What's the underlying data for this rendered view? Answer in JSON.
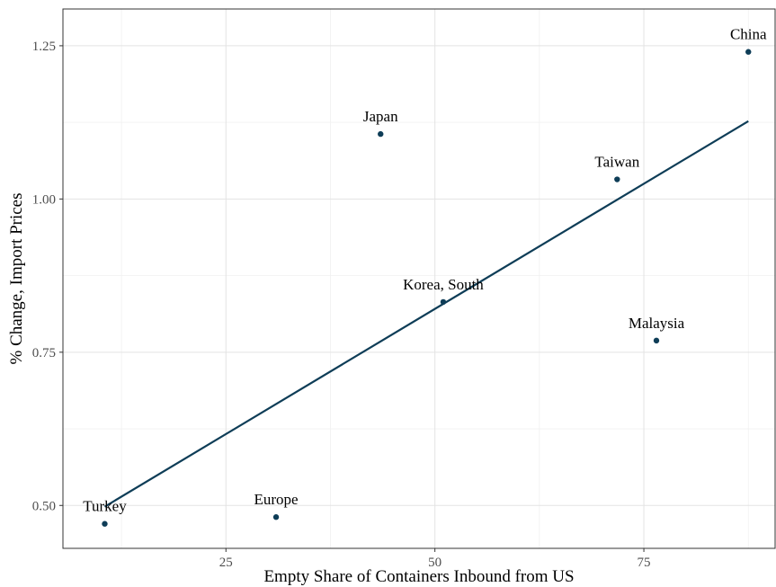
{
  "chart_data": {
    "type": "scatter",
    "title": "",
    "xlabel": "Empty Share of Containers Inbound from US",
    "ylabel": "% Change, Import Prices",
    "xlim": [
      5.5,
      90.7
    ],
    "ylim": [
      0.43,
      1.31
    ],
    "x_ticks": [
      25,
      50,
      75
    ],
    "x_tick_labels": [
      "25",
      "50",
      "75"
    ],
    "y_ticks": [
      0.5,
      0.75,
      1.0,
      1.25
    ],
    "y_tick_labels": [
      "0.50",
      "0.75",
      "1.00",
      "1.25"
    ],
    "grid": true,
    "legend": "none",
    "points": [
      {
        "label": "China",
        "x": 87.5,
        "y": 1.24
      },
      {
        "label": "Japan",
        "x": 43.5,
        "y": 1.106
      },
      {
        "label": "Taiwan",
        "x": 71.8,
        "y": 1.032
      },
      {
        "label": "Korea, South",
        "x": 51.0,
        "y": 0.832
      },
      {
        "label": "Malaysia",
        "x": 76.5,
        "y": 0.769
      },
      {
        "label": "Europe",
        "x": 31.0,
        "y": 0.481
      },
      {
        "label": "Turkey",
        "x": 10.5,
        "y": 0.47
      }
    ],
    "fit_line": {
      "x": [
        10.5,
        87.5
      ],
      "y": [
        0.498,
        1.127
      ]
    },
    "colors": {
      "points": "#0e3d57",
      "line": "#0e3d57",
      "panel_border": "#333333"
    }
  }
}
